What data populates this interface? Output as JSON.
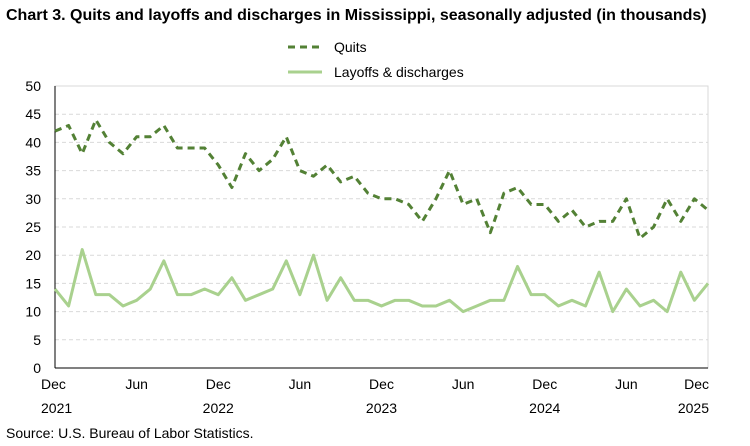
{
  "chart_data": {
    "type": "line",
    "title": "Chart 3. Quits and layoffs and discharges in Mississippi, seasonally adjusted (in thousands)",
    "source": "Source: U.S. Bureau of Labor Statistics.",
    "xlabel": "",
    "ylabel": "",
    "ylim": [
      0,
      50
    ],
    "yticks": [
      0,
      5,
      10,
      15,
      20,
      25,
      30,
      35,
      40,
      45,
      50
    ],
    "x_start": "Dec 2021",
    "x_end": "Dec 2025",
    "xtick_labels": [
      {
        "month": "Dec",
        "year": "2021"
      },
      {
        "month": "Jun",
        "year": ""
      },
      {
        "month": "Dec",
        "year": "2022"
      },
      {
        "month": "Jun",
        "year": ""
      },
      {
        "month": "Dec",
        "year": "2023"
      },
      {
        "month": "Jun",
        "year": ""
      },
      {
        "month": "Dec",
        "year": "2024"
      },
      {
        "month": "Jun",
        "year": ""
      },
      {
        "month": "Dec",
        "year": "2025"
      }
    ],
    "grid": true,
    "legend_placement": "top-center",
    "series": [
      {
        "name": "Quits",
        "color": "#538135",
        "style": "dashed",
        "values": [
          42,
          43,
          38,
          44,
          40,
          38,
          41,
          41,
          43,
          39,
          39,
          39,
          36,
          32,
          38,
          35,
          37,
          41,
          35,
          34,
          36,
          33,
          34,
          31,
          30,
          30,
          29,
          26,
          30,
          35,
          29,
          30,
          24,
          31,
          32,
          29,
          29,
          26,
          28,
          25,
          26,
          26,
          30,
          23,
          25,
          30,
          26,
          30,
          28
        ]
      },
      {
        "name": "Layoffs & discharges",
        "color": "#A9D18E",
        "style": "solid",
        "values": [
          14,
          11,
          21,
          13,
          13,
          11,
          12,
          14,
          19,
          13,
          13,
          14,
          13,
          16,
          12,
          13,
          14,
          19,
          13,
          20,
          12,
          16,
          12,
          12,
          11,
          12,
          12,
          11,
          11,
          12,
          10,
          11,
          12,
          12,
          18,
          13,
          13,
          11,
          12,
          11,
          17,
          10,
          14,
          11,
          12,
          10,
          17,
          12,
          15
        ]
      }
    ]
  }
}
